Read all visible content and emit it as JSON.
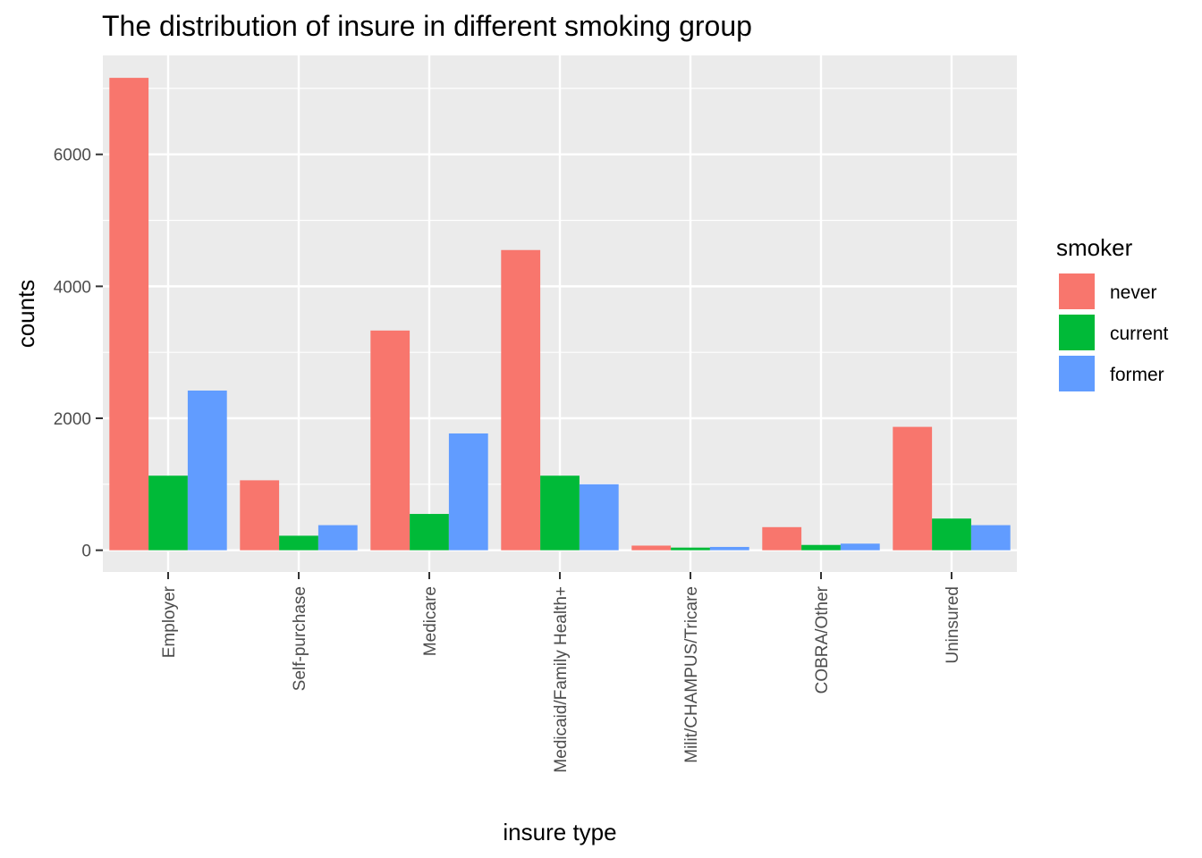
{
  "chart_data": {
    "type": "bar",
    "title": "The distribution of insure in different smoking group",
    "xlabel": "insure type",
    "ylabel": "counts",
    "categories": [
      "Employer",
      "Self-purchase",
      "Medicare",
      "Medicaid/Family Health+",
      "Milit/CHAMPUS/Tricare",
      "COBRA/Other",
      "Uninsured"
    ],
    "series": [
      {
        "name": "never",
        "color": "#F8766D",
        "values": [
          7160,
          1060,
          3330,
          4550,
          70,
          350,
          1870
        ]
      },
      {
        "name": "current",
        "color": "#00BA38",
        "values": [
          1130,
          220,
          550,
          1130,
          40,
          80,
          480
        ]
      },
      {
        "name": "former",
        "color": "#619CFF",
        "values": [
          2420,
          380,
          1770,
          1000,
          50,
          100,
          380
        ]
      }
    ],
    "ylim": [
      -330,
      7500
    ],
    "yticks": [
      0,
      2000,
      4000,
      6000
    ],
    "ytick_labels": [
      "0",
      "2000",
      "4000",
      "6000"
    ],
    "legend": {
      "title": "smoker",
      "position": "right"
    },
    "grid": true,
    "panel_background": "#EBEBEB"
  }
}
